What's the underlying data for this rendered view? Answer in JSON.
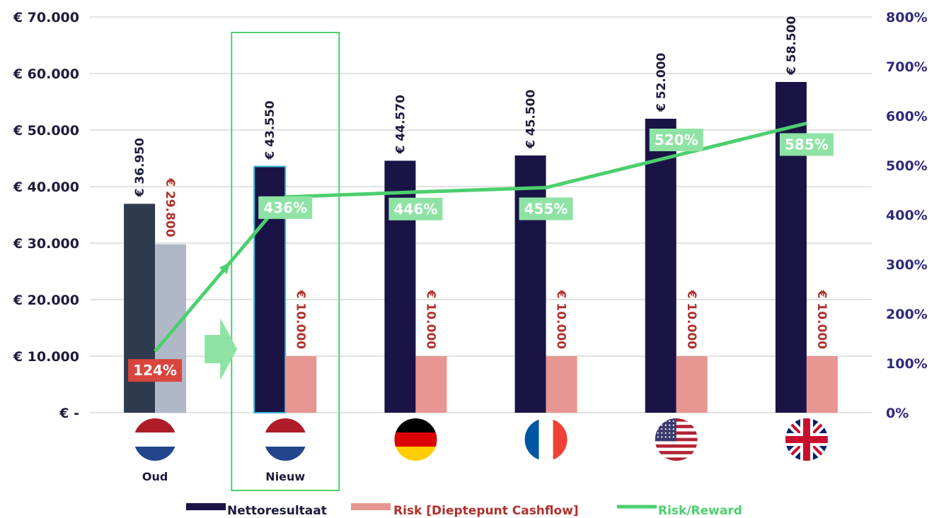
{
  "chart_data": {
    "type": "bar",
    "categories": [
      "Oud",
      "Nieuw",
      "",
      "",
      "",
      ""
    ],
    "category_flags": [
      "netherlands-flag",
      "netherlands-flag",
      "germany-flag",
      "france-flag",
      "usa-flag",
      "uk-flag"
    ],
    "series": [
      {
        "name": "Nettoresultaat",
        "type": "bar",
        "axis": "left",
        "values": [
          36950,
          43550,
          44570,
          45500,
          52000,
          58500
        ],
        "labels": [
          "€ 36.950",
          "€ 43.550",
          "€ 44.570",
          "€ 45.500",
          "€ 52.000",
          "€ 58.500"
        ],
        "color": "#1a1446",
        "first_color": "#2e3a4e"
      },
      {
        "name": "Risk [Dieptepunt Cashflow]",
        "type": "bar",
        "axis": "left",
        "values": [
          29800,
          10000,
          10000,
          10000,
          10000,
          10000
        ],
        "labels": [
          "€ 29.800",
          "€ 10.000",
          "€ 10.000",
          "€ 10.000",
          "€ 10.000",
          "€ 10.000"
        ],
        "color": "#e89692",
        "first_color": "#b0b8c8",
        "label_color": "#b0302c"
      },
      {
        "name": "Risk/Reward",
        "type": "line",
        "axis": "right",
        "values": [
          124,
          436,
          446,
          455,
          520,
          585
        ],
        "labels": [
          "124%",
          "436%",
          "446%",
          "455%",
          "520%",
          "585%"
        ],
        "color": "#4ccf6e",
        "label_bg": "#8ee3a4",
        "first_label_bg": "#d9453f"
      }
    ],
    "y_left": {
      "ylim": [
        0,
        70000
      ],
      "ticks": [
        70000,
        60000,
        50000,
        40000,
        30000,
        20000,
        10000,
        0
      ],
      "tick_labels": [
        "€ 70.000",
        "€ 60.000",
        "€ 50.000",
        "€ 40.000",
        "€ 30.000",
        "€ 20.000",
        "€ 10.000",
        "€ -"
      ]
    },
    "y_right": {
      "ylim": [
        0,
        800
      ],
      "ticks": [
        800,
        700,
        600,
        500,
        400,
        300,
        200,
        100,
        0
      ],
      "tick_labels": [
        "800%",
        "700%",
        "600%",
        "500%",
        "400%",
        "300%",
        "200%",
        "100%",
        "0%"
      ]
    },
    "highlight": "Nieuw",
    "grid": true,
    "legend": "bottom"
  },
  "colors": {
    "highlight_box": "#4ccf6e",
    "arrow": "#8ee3a4",
    "grid": "#d9d9d9"
  }
}
